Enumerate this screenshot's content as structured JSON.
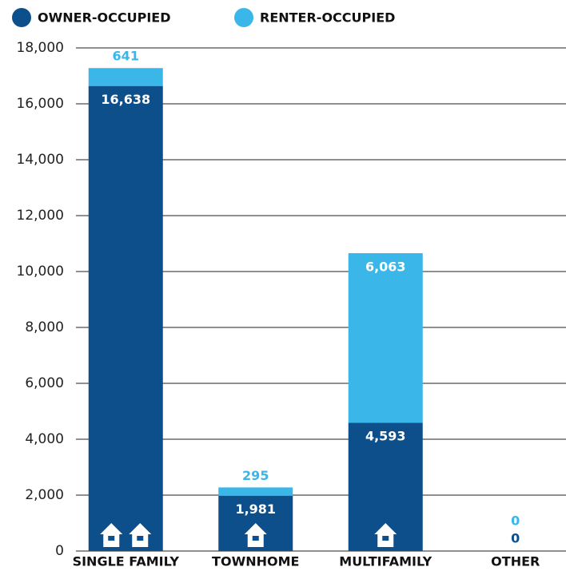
{
  "chart_data": {
    "type": "stacked-bar",
    "categories": [
      "SINGLE FAMILY",
      "TOWNHOME",
      "MULTIFAMILY",
      "OTHER"
    ],
    "series": [
      {
        "name": "OWNER-OCCUPIED",
        "color": "#0d4f8b",
        "values": [
          16638,
          1981,
          4593,
          0
        ],
        "value_labels": [
          "16,638",
          "1,981",
          "4,593",
          "0"
        ]
      },
      {
        "name": "RENTER-OCCUPIED",
        "color": "#3bb6e8",
        "values": [
          641,
          295,
          6063,
          0
        ],
        "value_labels": [
          "641",
          "295",
          "6,063",
          "0"
        ]
      }
    ],
    "ylim": [
      0,
      18000
    ],
    "yticks": [
      0,
      {
        "value": 2000,
        "label": "2,000"
      },
      {
        "value": 4000,
        "label": "4,000"
      },
      {
        "value": 6000,
        "label": "6,000"
      },
      {
        "value": 8000,
        "label": "8,000"
      },
      {
        "value": 10000,
        "label": "10,000"
      },
      {
        "value": 12000,
        "label": "12,000"
      },
      {
        "value": 14000,
        "label": "14,000"
      },
      {
        "value": 16000,
        "label": "16,000"
      },
      {
        "value": 18000,
        "label": "18,000"
      }
    ],
    "grid": true,
    "legend": "top-left"
  }
}
